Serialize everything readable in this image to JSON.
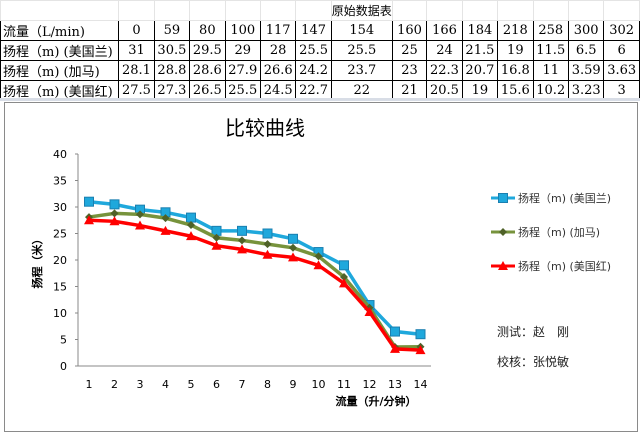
{
  "table": {
    "title": "原始数据表",
    "rows": [
      {
        "label": "流量（L/min)",
        "values": [
          "0",
          "59",
          "80",
          "100",
          "117",
          "147",
          "154",
          "160",
          "166",
          "184",
          "218",
          "258",
          "300",
          "302"
        ]
      },
      {
        "label": "扬程（m) (美国兰)",
        "values": [
          "31",
          "30.5",
          "29.5",
          "29",
          "28",
          "25.5",
          "25.5",
          "25",
          "24",
          "21.5",
          "19",
          "11.5",
          "6.5",
          "6"
        ]
      },
      {
        "label": "扬程（m) (加马)",
        "values": [
          "28.1",
          "28.8",
          "28.6",
          "27.9",
          "26.6",
          "24.2",
          "23.7",
          "23",
          "22.3",
          "20.7",
          "16.8",
          "11",
          "3.59",
          "3.63"
        ]
      },
      {
        "label": "扬程（m) (美国红)",
        "values": [
          "27.5",
          "27.3",
          "26.5",
          "25.5",
          "24.5",
          "22.7",
          "22",
          "21",
          "20.5",
          "19",
          "15.6",
          "10.2",
          "3.23",
          "3"
        ]
      }
    ]
  },
  "notes": {
    "tester": "测试：赵　刚",
    "checker": "校核：张悦敏"
  },
  "chart_data": {
    "type": "line",
    "title": "比较曲线",
    "xlabel": "流量（升/分钟）",
    "ylabel": "扬程（米）",
    "categories": [
      "1",
      "2",
      "3",
      "4",
      "5",
      "6",
      "7",
      "8",
      "9",
      "10",
      "11",
      "12",
      "13",
      "14"
    ],
    "ylim": [
      0,
      40
    ],
    "yticks": [
      "0",
      "5",
      "10",
      "15",
      "20",
      "25",
      "30",
      "35",
      "40"
    ],
    "legend_position": "right",
    "series": [
      {
        "name": "扬程（m) (美国兰)",
        "color": "#1fa8dc",
        "marker": "square",
        "values": [
          31,
          30.5,
          29.5,
          29,
          28,
          25.5,
          25.5,
          25,
          24,
          21.5,
          19,
          11.5,
          6.5,
          6
        ]
      },
      {
        "name": "扬程（m) (加马)",
        "color": "#77933c",
        "marker": "diamond",
        "values": [
          28.1,
          28.8,
          28.6,
          27.9,
          26.6,
          24.2,
          23.7,
          23,
          22.3,
          20.7,
          16.8,
          11,
          3.59,
          3.63
        ]
      },
      {
        "name": "扬程（m) (美国红)",
        "color": "#ff0000",
        "marker": "triangle",
        "values": [
          27.5,
          27.3,
          26.5,
          25.5,
          24.5,
          22.7,
          22,
          21,
          20.5,
          19,
          15.6,
          10.2,
          3.23,
          3
        ]
      }
    ]
  }
}
